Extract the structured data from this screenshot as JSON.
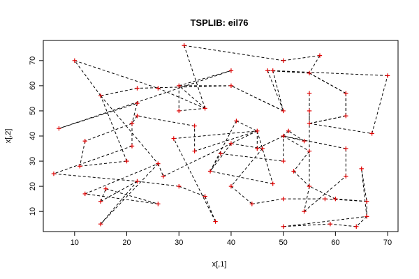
{
  "chart_data": {
    "type": "line",
    "title": "TSPLIB: eil76",
    "xlabel": "x[,1]",
    "ylabel": "x[,2]",
    "xlim": [
      4,
      72
    ],
    "ylim": [
      2,
      78
    ],
    "xticks": [
      10,
      20,
      30,
      40,
      50,
      60,
      70
    ],
    "yticks": [
      10,
      20,
      30,
      40,
      50,
      60,
      70
    ],
    "grid": false,
    "legend": "none",
    "colors": {
      "points": "#e00000",
      "edges": "#000000"
    },
    "tour": [
      [
        31,
        76
      ],
      [
        50,
        70
      ],
      [
        57,
        72
      ],
      [
        55,
        65
      ],
      [
        62,
        57
      ],
      [
        62,
        48
      ],
      [
        55,
        45
      ],
      [
        67,
        41
      ],
      [
        70,
        64
      ],
      [
        48,
        66
      ],
      [
        50,
        50
      ],
      [
        40,
        60
      ],
      [
        22,
        59
      ],
      [
        15,
        56
      ],
      [
        26,
        29
      ],
      [
        27,
        24
      ],
      [
        40,
        37
      ],
      [
        36,
        26
      ],
      [
        41,
        46
      ],
      [
        45,
        42
      ],
      [
        48,
        21
      ],
      [
        36,
        26
      ],
      [
        38,
        33
      ],
      [
        50,
        30
      ],
      [
        50,
        40
      ],
      [
        55,
        34
      ],
      [
        52,
        26
      ],
      [
        55,
        20
      ],
      [
        54,
        10
      ],
      [
        62,
        24
      ],
      [
        62,
        35
      ],
      [
        50,
        40
      ],
      [
        54,
        38
      ],
      [
        51,
        42
      ],
      [
        50,
        40
      ],
      [
        45,
        35
      ],
      [
        45,
        42
      ],
      [
        33,
        34
      ],
      [
        33,
        44
      ],
      [
        22,
        48
      ],
      [
        21,
        45
      ],
      [
        12,
        38
      ],
      [
        11,
        28
      ],
      [
        20,
        30
      ],
      [
        15,
        56
      ],
      [
        10,
        70
      ],
      [
        26,
        59
      ],
      [
        35,
        51
      ],
      [
        30,
        60
      ],
      [
        40,
        66
      ],
      [
        7,
        43
      ],
      [
        22,
        53
      ],
      [
        21,
        45
      ],
      [
        21,
        36
      ],
      [
        6,
        25
      ],
      [
        22,
        22
      ],
      [
        15,
        14
      ],
      [
        16,
        19
      ],
      [
        26,
        13
      ],
      [
        12,
        17
      ],
      [
        26,
        29
      ],
      [
        15,
        5
      ],
      [
        22,
        22
      ],
      [
        30,
        20
      ],
      [
        35,
        16
      ],
      [
        37,
        6
      ],
      [
        29,
        39
      ],
      [
        45,
        42
      ],
      [
        40,
        37
      ],
      [
        46,
        35
      ],
      [
        40,
        20
      ],
      [
        44,
        13
      ],
      [
        50,
        15
      ],
      [
        58,
        15
      ],
      [
        66,
        14
      ],
      [
        66,
        8
      ],
      [
        64,
        4
      ],
      [
        59,
        5
      ],
      [
        50,
        4
      ],
      [
        66,
        8
      ],
      [
        65,
        27
      ],
      [
        66,
        14
      ],
      [
        60,
        15
      ],
      [
        55,
        20
      ],
      [
        55,
        45
      ],
      [
        55,
        50
      ],
      [
        55,
        57
      ],
      [
        55,
        45
      ],
      [
        62,
        48
      ],
      [
        62,
        57
      ],
      [
        55,
        65
      ],
      [
        47,
        66
      ],
      [
        50,
        50
      ],
      [
        40,
        60
      ],
      [
        30,
        60
      ],
      [
        30,
        50
      ],
      [
        35,
        51
      ],
      [
        31,
        76
      ]
    ]
  }
}
